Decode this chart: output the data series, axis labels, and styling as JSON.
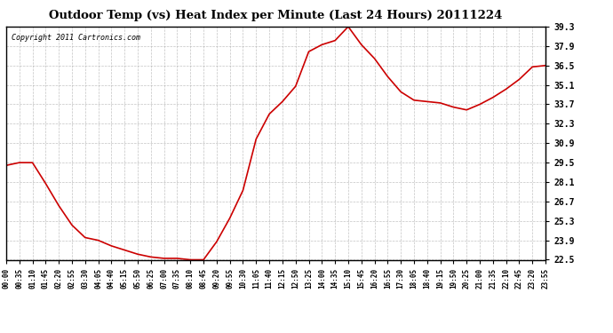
{
  "title": "Outdoor Temp (vs) Heat Index per Minute (Last 24 Hours) 20111224",
  "copyright": "Copyright 2011 Cartronics.com",
  "line_color": "#cc0000",
  "background_color": "#ffffff",
  "plot_bg_color": "#ffffff",
  "grid_color": "#aaaaaa",
  "yticks": [
    22.5,
    23.9,
    25.3,
    26.7,
    28.1,
    29.5,
    30.9,
    32.3,
    33.7,
    35.1,
    36.5,
    37.9,
    39.3
  ],
  "ymin": 22.5,
  "ymax": 39.3,
  "x_labels": [
    "00:00",
    "00:35",
    "01:10",
    "01:45",
    "02:20",
    "02:55",
    "03:30",
    "04:05",
    "04:40",
    "05:15",
    "05:50",
    "06:25",
    "07:00",
    "07:35",
    "08:10",
    "08:45",
    "09:20",
    "09:55",
    "10:30",
    "11:05",
    "11:40",
    "12:15",
    "12:50",
    "13:25",
    "14:00",
    "14:35",
    "15:10",
    "15:45",
    "16:20",
    "16:55",
    "17:30",
    "18:05",
    "18:40",
    "19:15",
    "19:50",
    "20:25",
    "21:00",
    "21:35",
    "22:10",
    "22:45",
    "23:20",
    "23:55"
  ],
  "curve_x": [
    0,
    1,
    2,
    3,
    4,
    5,
    6,
    7,
    8,
    9,
    10,
    11,
    12,
    13,
    14,
    15,
    16,
    17,
    18,
    19,
    20,
    21,
    22,
    23,
    24,
    25,
    26,
    27,
    28,
    29,
    30,
    31,
    32,
    33,
    34,
    35,
    36,
    37,
    38,
    39,
    40,
    41
  ],
  "curve_y": [
    29.3,
    29.5,
    29.5,
    28.0,
    26.4,
    25.0,
    24.1,
    23.9,
    23.5,
    23.2,
    22.9,
    22.7,
    22.6,
    22.6,
    22.5,
    22.5,
    23.8,
    25.5,
    27.5,
    31.2,
    33.0,
    33.9,
    35.0,
    37.5,
    38.0,
    38.3,
    39.3,
    38.0,
    37.0,
    35.7,
    34.6,
    34.0,
    33.9,
    33.8,
    33.5,
    33.3,
    33.7,
    34.2,
    34.8,
    35.5,
    36.4,
    36.5
  ]
}
